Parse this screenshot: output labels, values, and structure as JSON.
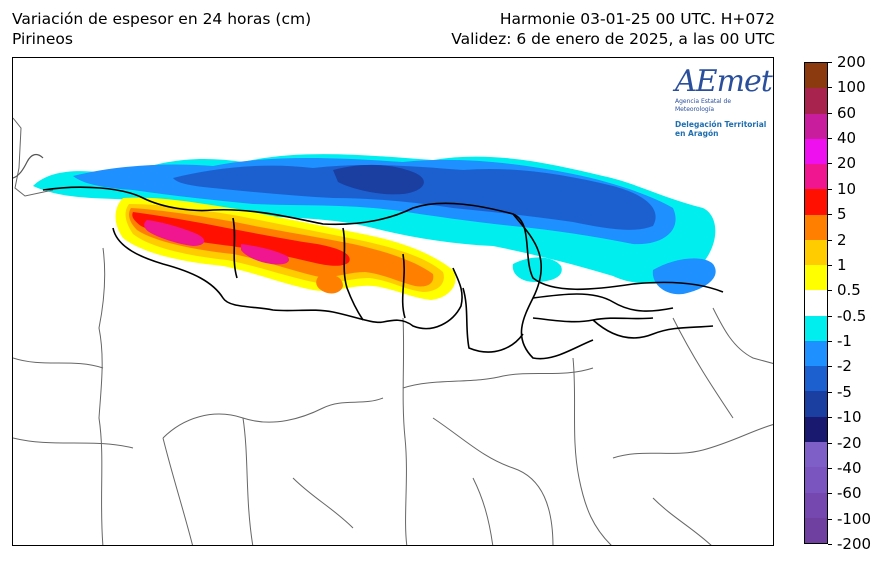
{
  "header": {
    "title": "Variación de espesor en 24 horas (cm)",
    "region": "Pirineos",
    "model_run": "Harmonie 03-01-25 00 UTC. H+072",
    "validity": "Validez: 6 de enero de 2025, a las 00 UTC"
  },
  "logo": {
    "wordmark": "AEmet",
    "agency": "Agencia Estatal de Meteorología",
    "delegation_line1": "Delegación Territorial",
    "delegation_line2": "en Aragón"
  },
  "colorbar": {
    "labels": [
      "200",
      "100",
      "60",
      "40",
      "20",
      "10",
      "5",
      "2",
      "1",
      "0.5",
      "-0.5",
      "-1",
      "-2",
      "-5",
      "-10",
      "-20",
      "-40",
      "-60",
      "-100",
      "-200"
    ],
    "colors": [
      "#8b3a10",
      "#a8234e",
      "#c81e9e",
      "#ee10ee",
      "#f01690",
      "#ff1000",
      "#ff8000",
      "#ffcc00",
      "#ffff00",
      "#ffffff",
      "#00eeee",
      "#1e90ff",
      "#1c60d0",
      "#1a3fa0",
      "#191970",
      "#7e5fc8",
      "#7a55c0",
      "#7548b0",
      "#7040a0",
      "#6e3590"
    ]
  }
}
